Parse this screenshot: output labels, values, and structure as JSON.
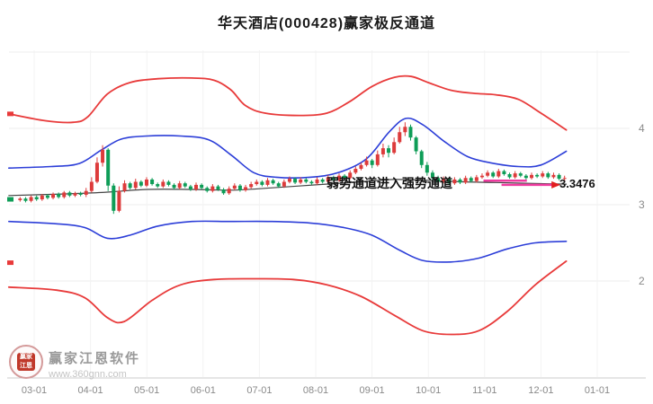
{
  "title": "华天酒店(000428)赢家极反通道",
  "annotation": {
    "text": "弱势通道进入强势通道",
    "price_label": "3.3476"
  },
  "watermark": {
    "name": "赢家江恩软件",
    "url": "www.360gnn.com",
    "logo_line1": "赢家",
    "logo_line2": "江恩"
  },
  "colors": {
    "candle_up": "#dd3b3b",
    "candle_down": "#0e9d57",
    "band_red": "#e83a3a",
    "band_blue": "#2c3ed8",
    "band_mid": "#444444",
    "trend_magenta": "#f03aa0",
    "arrow_red": "#e21f1f",
    "grid": "#ececec",
    "grid_v": "#f3f3f3",
    "axis_line": "#cccccc",
    "axis_text": "#8a8a8a"
  },
  "chart_data": {
    "type": "candlestick",
    "title": "华天酒店(000428)赢家极反通道",
    "x_axis": {
      "labels": [
        "03-01",
        "04-01",
        "05-01",
        "06-01",
        "07-01",
        "08-01",
        "09-01",
        "10-01",
        "11-01",
        "12-01",
        "01-01"
      ]
    },
    "y_axis": {
      "ticks": [
        {
          "label": "4",
          "price": 4
        },
        {
          "label": "3",
          "price": 3
        },
        {
          "label": "2",
          "price": 2
        }
      ],
      "grid_prices": [
        5,
        4,
        3,
        2
      ],
      "range": [
        1.2,
        5.0
      ]
    },
    "candles": {
      "t_start": -0.25,
      "t_end": 9.42,
      "ohlc": [
        [
          3.06,
          3.1,
          3.04,
          3.08
        ],
        [
          3.08,
          3.1,
          3.03,
          3.05
        ],
        [
          3.05,
          3.12,
          3.03,
          3.1
        ],
        [
          3.1,
          3.12,
          3.05,
          3.07
        ],
        [
          3.07,
          3.14,
          3.05,
          3.12
        ],
        [
          3.12,
          3.14,
          3.07,
          3.09
        ],
        [
          3.09,
          3.16,
          3.07,
          3.14
        ],
        [
          3.14,
          3.16,
          3.08,
          3.1
        ],
        [
          3.1,
          3.18,
          3.08,
          3.16
        ],
        [
          3.16,
          3.18,
          3.1,
          3.12
        ],
        [
          3.12,
          3.17,
          3.1,
          3.15
        ],
        [
          3.15,
          3.17,
          3.11,
          3.13
        ],
        [
          3.13,
          3.22,
          3.1,
          3.18
        ],
        [
          3.18,
          3.36,
          3.16,
          3.3
        ],
        [
          3.3,
          3.62,
          3.28,
          3.55
        ],
        [
          3.55,
          3.78,
          3.5,
          3.72
        ],
        [
          3.72,
          3.74,
          3.18,
          3.25
        ],
        [
          3.25,
          3.28,
          2.88,
          2.92
        ],
        [
          2.92,
          3.24,
          2.9,
          3.18
        ],
        [
          3.18,
          3.32,
          3.16,
          3.28
        ],
        [
          3.28,
          3.3,
          3.2,
          3.22
        ],
        [
          3.22,
          3.34,
          3.2,
          3.3
        ],
        [
          3.3,
          3.32,
          3.23,
          3.25
        ],
        [
          3.25,
          3.36,
          3.23,
          3.33
        ],
        [
          3.33,
          3.35,
          3.25,
          3.27
        ],
        [
          3.27,
          3.29,
          3.22,
          3.24
        ],
        [
          3.24,
          3.33,
          3.22,
          3.3
        ],
        [
          3.3,
          3.32,
          3.24,
          3.26
        ],
        [
          3.26,
          3.28,
          3.2,
          3.22
        ],
        [
          3.22,
          3.31,
          3.2,
          3.28
        ],
        [
          3.28,
          3.3,
          3.22,
          3.24
        ],
        [
          3.24,
          3.26,
          3.18,
          3.2
        ],
        [
          3.2,
          3.29,
          3.18,
          3.26
        ],
        [
          3.26,
          3.28,
          3.2,
          3.22
        ],
        [
          3.22,
          3.24,
          3.16,
          3.18
        ],
        [
          3.18,
          3.27,
          3.16,
          3.24
        ],
        [
          3.24,
          3.26,
          3.18,
          3.2
        ],
        [
          3.2,
          3.22,
          3.13,
          3.15
        ],
        [
          3.15,
          3.24,
          3.13,
          3.21
        ],
        [
          3.21,
          3.28,
          3.19,
          3.25
        ],
        [
          3.25,
          3.27,
          3.17,
          3.19
        ],
        [
          3.19,
          3.26,
          3.17,
          3.23
        ],
        [
          3.23,
          3.3,
          3.21,
          3.27
        ],
        [
          3.27,
          3.33,
          3.25,
          3.3
        ],
        [
          3.3,
          3.32,
          3.24,
          3.26
        ],
        [
          3.26,
          3.35,
          3.24,
          3.32
        ],
        [
          3.32,
          3.34,
          3.26,
          3.28
        ],
        [
          3.28,
          3.3,
          3.22,
          3.24
        ],
        [
          3.24,
          3.33,
          3.22,
          3.3
        ],
        [
          3.3,
          3.37,
          3.28,
          3.34
        ],
        [
          3.34,
          3.36,
          3.27,
          3.29
        ],
        [
          3.29,
          3.36,
          3.27,
          3.33
        ],
        [
          3.33,
          3.35,
          3.28,
          3.3
        ],
        [
          3.3,
          3.32,
          3.26,
          3.28
        ],
        [
          3.28,
          3.36,
          3.26,
          3.33
        ],
        [
          3.33,
          3.35,
          3.28,
          3.3
        ],
        [
          3.3,
          3.39,
          3.28,
          3.36
        ],
        [
          3.36,
          3.38,
          3.3,
          3.32
        ],
        [
          3.32,
          3.41,
          3.3,
          3.38
        ],
        [
          3.38,
          3.4,
          3.33,
          3.35
        ],
        [
          3.35,
          3.45,
          3.33,
          3.42
        ],
        [
          3.42,
          3.5,
          3.4,
          3.47
        ],
        [
          3.47,
          3.55,
          3.45,
          3.52
        ],
        [
          3.52,
          3.63,
          3.5,
          3.58
        ],
        [
          3.58,
          3.6,
          3.48,
          3.52
        ],
        [
          3.52,
          3.71,
          3.5,
          3.66
        ],
        [
          3.66,
          3.8,
          3.62,
          3.74
        ],
        [
          3.74,
          3.78,
          3.62,
          3.68
        ],
        [
          3.68,
          3.88,
          3.66,
          3.82
        ],
        [
          3.82,
          4.02,
          3.8,
          3.95
        ],
        [
          3.95,
          4.08,
          3.9,
          4.02
        ],
        [
          4.02,
          4.05,
          3.84,
          3.88
        ],
        [
          3.88,
          3.9,
          3.66,
          3.7
        ],
        [
          3.7,
          3.72,
          3.48,
          3.52
        ],
        [
          3.52,
          3.56,
          3.38,
          3.42
        ],
        [
          3.42,
          3.45,
          3.32,
          3.35
        ],
        [
          3.35,
          3.38,
          3.27,
          3.3
        ],
        [
          3.3,
          3.37,
          3.28,
          3.34
        ],
        [
          3.34,
          3.36,
          3.26,
          3.28
        ],
        [
          3.28,
          3.36,
          3.26,
          3.33
        ],
        [
          3.33,
          3.35,
          3.27,
          3.29
        ],
        [
          3.29,
          3.38,
          3.27,
          3.35
        ],
        [
          3.35,
          3.37,
          3.29,
          3.31
        ],
        [
          3.31,
          3.39,
          3.29,
          3.36
        ],
        [
          3.36,
          3.41,
          3.34,
          3.38
        ],
        [
          3.38,
          3.45,
          3.36,
          3.42
        ],
        [
          3.42,
          3.44,
          3.35,
          3.37
        ],
        [
          3.37,
          3.47,
          3.35,
          3.44
        ],
        [
          3.44,
          3.46,
          3.38,
          3.4
        ],
        [
          3.4,
          3.42,
          3.34,
          3.36
        ],
        [
          3.36,
          3.44,
          3.34,
          3.41
        ],
        [
          3.41,
          3.43,
          3.36,
          3.38
        ],
        [
          3.38,
          3.4,
          3.33,
          3.35
        ],
        [
          3.35,
          3.42,
          3.33,
          3.39
        ],
        [
          3.39,
          3.41,
          3.35,
          3.37
        ],
        [
          3.37,
          3.44,
          3.35,
          3.41
        ],
        [
          3.41,
          3.43,
          3.34,
          3.36
        ],
        [
          3.36,
          3.42,
          3.34,
          3.39
        ],
        [
          3.39,
          3.41,
          3.32,
          3.34
        ],
        [
          3.34,
          3.38,
          3.3,
          3.35
        ]
      ]
    },
    "bands": [
      {
        "name": "upper-red-band",
        "color": "#e83a3a",
        "width": 1.8,
        "points": [
          [
            -0.45,
            4.19
          ],
          [
            0.2,
            4.1
          ],
          [
            0.7,
            4.08
          ],
          [
            0.95,
            4.15
          ],
          [
            1.3,
            4.45
          ],
          [
            1.7,
            4.6
          ],
          [
            2.2,
            4.65
          ],
          [
            2.8,
            4.66
          ],
          [
            3.2,
            4.63
          ],
          [
            3.5,
            4.5
          ],
          [
            3.75,
            4.3
          ],
          [
            4.1,
            4.2
          ],
          [
            4.7,
            4.17
          ],
          [
            5.2,
            4.2
          ],
          [
            5.6,
            4.35
          ],
          [
            6.0,
            4.55
          ],
          [
            6.4,
            4.67
          ],
          [
            6.7,
            4.68
          ],
          [
            7.0,
            4.6
          ],
          [
            7.4,
            4.5
          ],
          [
            7.8,
            4.46
          ],
          [
            8.2,
            4.44
          ],
          [
            8.6,
            4.38
          ],
          [
            9.0,
            4.2
          ],
          [
            9.45,
            3.98
          ]
        ]
      },
      {
        "name": "upper-blue-band",
        "color": "#2c3ed8",
        "width": 1.6,
        "points": [
          [
            -0.45,
            3.48
          ],
          [
            0.3,
            3.5
          ],
          [
            0.8,
            3.54
          ],
          [
            1.2,
            3.72
          ],
          [
            1.55,
            3.86
          ],
          [
            2.0,
            3.9
          ],
          [
            2.6,
            3.9
          ],
          [
            3.1,
            3.85
          ],
          [
            3.5,
            3.65
          ],
          [
            3.9,
            3.42
          ],
          [
            4.3,
            3.36
          ],
          [
            4.9,
            3.36
          ],
          [
            5.4,
            3.42
          ],
          [
            5.9,
            3.6
          ],
          [
            6.3,
            3.95
          ],
          [
            6.6,
            4.13
          ],
          [
            6.9,
            4.05
          ],
          [
            7.3,
            3.82
          ],
          [
            7.7,
            3.63
          ],
          [
            8.1,
            3.55
          ],
          [
            8.6,
            3.5
          ],
          [
            9.0,
            3.52
          ],
          [
            9.45,
            3.7
          ]
        ]
      },
      {
        "name": "middle-band",
        "color": "#444444",
        "width": 1.2,
        "points": [
          [
            -0.45,
            3.12
          ],
          [
            0.5,
            3.14
          ],
          [
            1.2,
            3.16
          ],
          [
            2.0,
            3.2
          ],
          [
            2.8,
            3.2
          ],
          [
            3.5,
            3.19
          ],
          [
            4.2,
            3.22
          ],
          [
            5.0,
            3.26
          ],
          [
            5.8,
            3.3
          ],
          [
            6.4,
            3.33
          ],
          [
            7.0,
            3.32
          ],
          [
            7.6,
            3.3
          ],
          [
            8.2,
            3.29
          ],
          [
            8.8,
            3.28
          ],
          [
            9.45,
            3.27
          ]
        ]
      },
      {
        "name": "lower-blue-band",
        "color": "#2c3ed8",
        "width": 1.6,
        "points": [
          [
            -0.45,
            2.78
          ],
          [
            0.4,
            2.75
          ],
          [
            0.9,
            2.7
          ],
          [
            1.3,
            2.56
          ],
          [
            1.7,
            2.6
          ],
          [
            2.2,
            2.72
          ],
          [
            2.8,
            2.78
          ],
          [
            3.5,
            2.78
          ],
          [
            4.2,
            2.78
          ],
          [
            4.9,
            2.76
          ],
          [
            5.5,
            2.7
          ],
          [
            6.0,
            2.6
          ],
          [
            6.5,
            2.4
          ],
          [
            6.9,
            2.27
          ],
          [
            7.4,
            2.25
          ],
          [
            7.9,
            2.3
          ],
          [
            8.4,
            2.42
          ],
          [
            8.9,
            2.5
          ],
          [
            9.45,
            2.52
          ]
        ]
      },
      {
        "name": "lower-red-band",
        "color": "#e83a3a",
        "width": 1.8,
        "points": [
          [
            -0.45,
            1.92
          ],
          [
            0.4,
            1.88
          ],
          [
            0.9,
            1.78
          ],
          [
            1.3,
            1.52
          ],
          [
            1.6,
            1.47
          ],
          [
            2.1,
            1.75
          ],
          [
            2.6,
            1.95
          ],
          [
            3.2,
            2.02
          ],
          [
            3.9,
            2.03
          ],
          [
            4.6,
            2.02
          ],
          [
            5.2,
            1.95
          ],
          [
            5.8,
            1.8
          ],
          [
            6.4,
            1.55
          ],
          [
            6.9,
            1.35
          ],
          [
            7.4,
            1.3
          ],
          [
            7.9,
            1.35
          ],
          [
            8.4,
            1.6
          ],
          [
            8.9,
            1.95
          ],
          [
            9.45,
            2.26
          ]
        ]
      }
    ],
    "trend_lines": [
      {
        "t1": 7.98,
        "t2": 8.75,
        "price": 3.315
      },
      {
        "t1": 8.3,
        "t2": 9.22,
        "price": 3.26
      }
    ],
    "arrow": {
      "t": 9.22,
      "price": 3.26
    },
    "left_ticks": [
      {
        "price": 4.19,
        "color": "#e83a3a"
      },
      {
        "price": 3.07,
        "color": "#0e9d57"
      },
      {
        "price": 2.24,
        "color": "#e83a3a"
      }
    ],
    "annotation": {
      "text": "弱势通道进入强势通道",
      "price_label": "3.3476"
    }
  }
}
